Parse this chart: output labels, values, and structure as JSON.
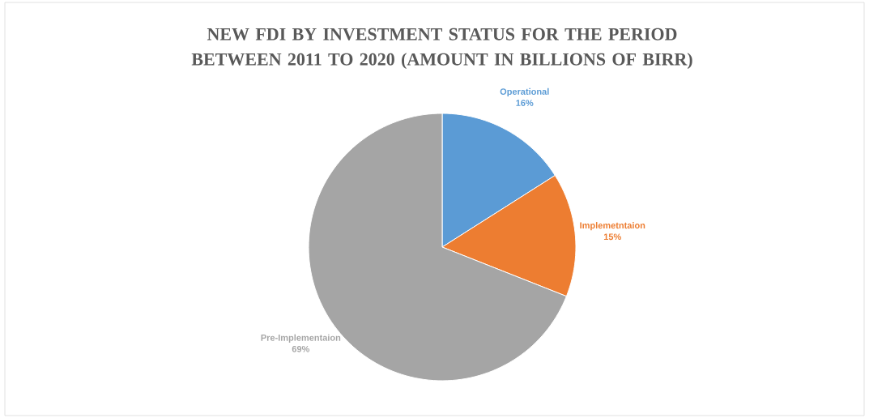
{
  "chart_data": {
    "type": "pie",
    "title": "NEW FDI BY INVESTMENT STATUS FOR THE PERIOD BETWEEN 2011 TO 2020 (AMOUNT IN BILLIONS OF BIRR)",
    "categories": [
      "Operational",
      "Implemetntaion",
      "Pre-Implementaion"
    ],
    "values": [
      16,
      15,
      69
    ],
    "colors": [
      "#5b9bd5",
      "#ed7d31",
      "#a5a5a5"
    ],
    "value_labels": [
      "16%",
      "15%",
      "69%"
    ]
  }
}
